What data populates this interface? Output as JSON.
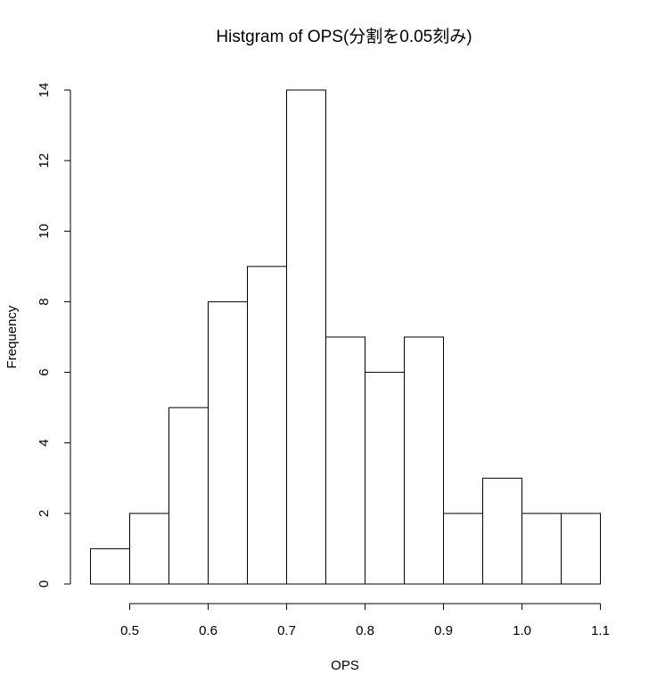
{
  "chart_data": {
    "type": "bar",
    "title": "Histgram of OPS(分割を0.05刻み)",
    "xlabel": "OPS",
    "ylabel": "Frequency",
    "bin_width": 0.05,
    "bins": [
      {
        "start": 0.45,
        "end": 0.5,
        "count": 1
      },
      {
        "start": 0.5,
        "end": 0.55,
        "count": 2
      },
      {
        "start": 0.55,
        "end": 0.6,
        "count": 5
      },
      {
        "start": 0.6,
        "end": 0.65,
        "count": 8
      },
      {
        "start": 0.65,
        "end": 0.7,
        "count": 9
      },
      {
        "start": 0.7,
        "end": 0.75,
        "count": 14
      },
      {
        "start": 0.75,
        "end": 0.8,
        "count": 7
      },
      {
        "start": 0.8,
        "end": 0.85,
        "count": 6
      },
      {
        "start": 0.85,
        "end": 0.9,
        "count": 7
      },
      {
        "start": 0.9,
        "end": 0.95,
        "count": 2
      },
      {
        "start": 0.95,
        "end": 1.0,
        "count": 3
      },
      {
        "start": 1.0,
        "end": 1.05,
        "count": 2
      },
      {
        "start": 1.05,
        "end": 1.1,
        "count": 2
      }
    ],
    "x_ticks": [
      "0.5",
      "0.6",
      "0.7",
      "0.8",
      "0.9",
      "1.0",
      "1.1"
    ],
    "x_tick_values": [
      0.5,
      0.6,
      0.7,
      0.8,
      0.9,
      1.0,
      1.1
    ],
    "y_ticks": [
      "0",
      "2",
      "4",
      "6",
      "8",
      "10",
      "12",
      "14"
    ],
    "y_tick_values": [
      0,
      2,
      4,
      6,
      8,
      10,
      12,
      14
    ],
    "xlim": [
      0.45,
      1.1
    ],
    "ylim": [
      0,
      14
    ],
    "grid": false,
    "legend": false,
    "bar_fill": "#ffffff",
    "bar_stroke": "#000000"
  }
}
